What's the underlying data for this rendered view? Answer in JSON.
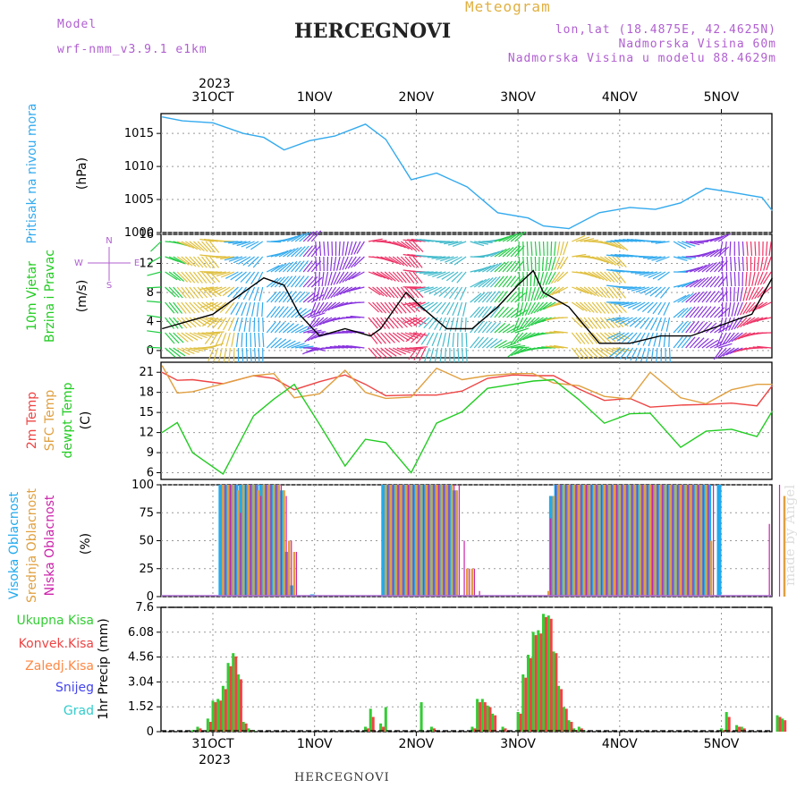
{
  "header": {
    "model_label": "Model",
    "model_name": "wrf-nmm_v3.9.1 e1km",
    "title": "HERCEGNOVI",
    "meteogram_label": "Meteogram",
    "lonlat": "lon,lat (18.4875E, 42.4625N)",
    "altitude": "Nadmorska Visina 60m",
    "model_altitude": "Nadmorska Visina u modelu 88.4629m"
  },
  "footer": {
    "station": "HERCEGNOVI"
  },
  "watermark": "made by Angel",
  "time_axis": {
    "year": "2023",
    "ticks": [
      "31OCT",
      "1NOV",
      "2NOV",
      "3NOV",
      "4NOV",
      "5NOV"
    ]
  },
  "colors": {
    "pressure": "#33aaee",
    "temp2m": "#ee4444",
    "sfc_temp": "#e0a040",
    "dewpt": "#22cc22",
    "high_cloud": "#22aaee",
    "mid_cloud": "#e0a040",
    "low_cloud": "#cc22aa",
    "total_precip": "#33cc33",
    "conv_precip": "#ee4444"
  },
  "chart_data": [
    {
      "type": "line",
      "panel": "pressure",
      "ylabel": "Pritisak na nivou mora",
      "unit": "(hPa)",
      "ylim": [
        1000,
        1018
      ],
      "yticks": [
        1000,
        1005,
        1010,
        1015
      ],
      "x_days": [
        0,
        0.2,
        0.5,
        0.8,
        1.0,
        1.2,
        1.45,
        1.7,
        2.0,
        2.2,
        2.45,
        2.7,
        3.0,
        3.3,
        3.6,
        3.75,
        4.0,
        4.3,
        4.6,
        4.85,
        5.1,
        5.35,
        5.6,
        5.9,
        6.0
      ],
      "series": [
        {
          "values": [
            1017.5,
            1016.9,
            1016.6,
            1015.0,
            1014.4,
            1012.5,
            1013.9,
            1014.6,
            1016.4,
            1014.1,
            1008.0,
            1009.0,
            1006.9,
            1003.0,
            1002.2,
            1001.0,
            1000.6,
            1003.0,
            1003.8,
            1003.5,
            1004.5,
            1006.7,
            1006.1,
            1005.3,
            1003.3
          ]
        }
      ]
    },
    {
      "type": "line",
      "panel": "wind",
      "ylabel": "10m Vjetar Brzina i Pravac",
      "unit": "(m/s)",
      "ylim": [
        -1,
        16
      ],
      "yticks": [
        0,
        4,
        8,
        12,
        16
      ],
      "x_days": [
        0,
        0.5,
        0.8,
        1.0,
        1.2,
        1.35,
        1.55,
        1.8,
        2.05,
        2.15,
        2.4,
        2.55,
        2.8,
        3.05,
        3.3,
        3.5,
        3.65,
        3.75,
        4.0,
        4.3,
        4.6,
        4.9,
        5.2,
        5.4,
        5.6,
        5.8,
        6.0
      ],
      "series": [
        {
          "values": [
            3,
            5,
            8,
            10,
            9,
            5,
            2,
            3,
            2,
            3,
            8,
            6,
            3,
            3,
            6,
            9,
            11,
            8,
            6,
            1,
            1,
            2,
            2,
            3,
            4,
            5,
            10
          ]
        }
      ],
      "compass_labels": [
        "N",
        "S",
        "W",
        "E"
      ]
    },
    {
      "type": "line",
      "panel": "temperature",
      "ylabel": [
        "2m Temp",
        "SFC Temp",
        "dewpt Temp"
      ],
      "unit": "(C)",
      "ylim": [
        5,
        22.5
      ],
      "yticks": [
        6,
        9,
        12,
        15,
        18,
        21
      ],
      "x_days": [
        0,
        0.15,
        0.3,
        0.6,
        0.9,
        1.1,
        1.3,
        1.55,
        1.8,
        2.0,
        2.2,
        2.45,
        2.7,
        2.95,
        3.2,
        3.45,
        3.65,
        3.85,
        4.1,
        4.35,
        4.6,
        4.8,
        5.1,
        5.35,
        5.6,
        5.85,
        6.0
      ],
      "series": [
        {
          "name": "2m Temp",
          "values": [
            21,
            19.8,
            19.9,
            19.3,
            20.5,
            20.1,
            18.4,
            19.6,
            20.6,
            19.2,
            17.5,
            17.6,
            17.6,
            18.2,
            20.1,
            20.6,
            20.5,
            20.5,
            18.5,
            16.8,
            17.1,
            15.8,
            16.1,
            16.2,
            16.4,
            16.0,
            19.0
          ]
        },
        {
          "name": "SFC Temp",
          "values": [
            22,
            17.9,
            18.1,
            19.3,
            20.5,
            20.8,
            17.2,
            17.8,
            21.3,
            18.0,
            17.1,
            17.3,
            21.6,
            19.9,
            20.5,
            20.8,
            20.8,
            19.4,
            19.0,
            17.4,
            17.0,
            21.0,
            17.2,
            16.3,
            18.4,
            19.2,
            19.2
          ]
        },
        {
          "name": "dewpt Temp",
          "values": [
            12,
            13.5,
            9,
            5.8,
            14.5,
            17.0,
            19.2,
            13.2,
            7.0,
            11.0,
            10.5,
            6.0,
            13.4,
            15.1,
            18.6,
            19.2,
            19.7,
            19.9,
            16.9,
            13.4,
            14.8,
            14.9,
            9.8,
            12.2,
            12.5,
            11.4,
            15.2
          ]
        }
      ]
    },
    {
      "type": "bar",
      "panel": "cloud_cover",
      "ylabel": [
        "Visoka Oblacnost",
        "Srednja Oblacnost",
        "Niska Oblacnost"
      ],
      "unit": "(%)",
      "ylim": [
        0,
        100
      ],
      "yticks": [
        0,
        25,
        50,
        75,
        100
      ],
      "x_days": [
        0.55,
        0.6,
        0.65,
        0.7,
        0.75,
        0.8,
        0.85,
        0.9,
        0.95,
        1.0,
        1.05,
        1.1,
        1.15,
        1.2,
        1.25,
        1.3,
        1.35,
        1.5,
        2.15,
        2.2,
        2.25,
        2.3,
        2.35,
        2.4,
        2.45,
        2.5,
        2.55,
        2.6,
        2.65,
        2.7,
        2.75,
        2.8,
        2.85,
        2.9,
        2.95,
        3.0,
        3.05,
        3.1,
        3.15,
        3.3,
        3.8,
        3.85,
        3.9,
        3.95,
        4.0,
        4.05,
        4.1,
        4.15,
        4.2,
        4.25,
        4.3,
        4.35,
        4.4,
        4.45,
        4.5,
        4.55,
        4.6,
        4.65,
        4.7,
        4.75,
        4.8,
        4.85,
        4.9,
        4.95,
        5.0,
        5.05,
        5.1,
        5.15,
        5.2,
        5.25,
        5.3,
        5.35,
        5.4,
        5.5,
        5.95,
        6.0,
        6.05,
        6.12
      ],
      "series": [
        {
          "name": "Visoka Oblacnost",
          "values": [
            0,
            100,
            100,
            100,
            100,
            100,
            100,
            100,
            100,
            100,
            100,
            100,
            100,
            95,
            40,
            10,
            0,
            2,
            0,
            100,
            100,
            100,
            100,
            100,
            100,
            100,
            100,
            100,
            100,
            100,
            100,
            100,
            100,
            95,
            0,
            0,
            0,
            0,
            0,
            0,
            0,
            90,
            100,
            100,
            100,
            100,
            100,
            100,
            100,
            100,
            100,
            100,
            100,
            100,
            100,
            100,
            100,
            100,
            100,
            100,
            100,
            100,
            100,
            100,
            100,
            100,
            100,
            100,
            100,
            100,
            100,
            100,
            100,
            100,
            0,
            0,
            0,
            0
          ]
        },
        {
          "name": "Srednja Oblacnost",
          "values": [
            0,
            100,
            100,
            100,
            95,
            100,
            100,
            100,
            95,
            100,
            100,
            100,
            100,
            95,
            50,
            40,
            0,
            0,
            0,
            100,
            100,
            100,
            100,
            100,
            100,
            100,
            100,
            100,
            100,
            100,
            100,
            100,
            100,
            95,
            0,
            25,
            25,
            0,
            0,
            0,
            5,
            90,
            100,
            100,
            100,
            100,
            100,
            100,
            100,
            100,
            100,
            100,
            100,
            100,
            100,
            100,
            100,
            100,
            100,
            100,
            100,
            100,
            100,
            100,
            100,
            100,
            100,
            100,
            100,
            100,
            100,
            100,
            50,
            0,
            0,
            0,
            0,
            90
          ]
        },
        {
          "name": "Niska Oblacnost",
          "values": [
            0,
            100,
            100,
            100,
            75,
            100,
            100,
            100,
            90,
            100,
            100,
            100,
            100,
            90,
            50,
            40,
            0,
            0,
            0,
            100,
            100,
            100,
            100,
            100,
            100,
            100,
            100,
            100,
            100,
            100,
            100,
            100,
            100,
            100,
            50,
            25,
            25,
            5,
            0,
            0,
            70,
            100,
            100,
            100,
            100,
            100,
            100,
            100,
            100,
            100,
            100,
            100,
            100,
            100,
            100,
            100,
            100,
            100,
            100,
            100,
            100,
            100,
            100,
            100,
            100,
            100,
            100,
            100,
            100,
            100,
            100,
            100,
            100,
            0,
            65,
            0,
            100,
            0
          ]
        }
      ]
    },
    {
      "type": "bar",
      "panel": "precipitation",
      "ylabel": "1hr Precip",
      "unit": "(mm)",
      "ylim": [
        0,
        7.6
      ],
      "yticks": [
        0,
        1.52,
        3.04,
        4.56,
        6.08,
        7.6
      ],
      "legend": [
        "Ukupna Kisa",
        "Konvek.Kisa",
        "Zaledj.Kisa",
        "Snijeg",
        "Grad"
      ],
      "x_days": [
        0.3,
        0.35,
        0.45,
        0.5,
        0.55,
        0.6,
        0.65,
        0.7,
        0.75,
        0.8,
        0.85,
        0.9,
        2.0,
        2.05,
        2.15,
        2.2,
        2.55,
        2.65,
        3.05,
        3.1,
        3.15,
        3.2,
        3.25,
        3.35,
        3.5,
        3.55,
        3.6,
        3.65,
        3.7,
        3.75,
        3.8,
        3.85,
        3.9,
        3.95,
        4.0,
        4.05,
        4.1,
        4.15,
        5.5,
        5.55,
        5.65,
        5.7,
        6.05,
        6.1
      ],
      "series": [
        {
          "name": "Ukupna Kisa",
          "values": [
            0.1,
            0.3,
            0.8,
            1.9,
            2.0,
            2.8,
            4.2,
            4.8,
            3.5,
            0.6,
            0.2,
            0.1,
            0.3,
            1.4,
            0.5,
            1.5,
            1.8,
            0.3,
            0.3,
            2.0,
            2.0,
            1.6,
            1.1,
            0.3,
            1.2,
            3.5,
            4.7,
            6.1,
            6.2,
            7.2,
            7.1,
            4.9,
            2.8,
            1.5,
            0.7,
            0.2,
            0.3,
            0.1,
            0.2,
            1.2,
            0.4,
            0.3,
            1.0,
            0.8
          ]
        },
        {
          "name": "Konvek.Kisa",
          "values": [
            0.0,
            0.2,
            0.6,
            1.8,
            1.9,
            2.6,
            4.0,
            4.6,
            3.2,
            0.5,
            0.1,
            0.0,
            0.2,
            0.9,
            0.3,
            0.0,
            0.0,
            0.2,
            0.2,
            1.8,
            1.8,
            1.5,
            1.0,
            0.2,
            1.1,
            3.3,
            4.5,
            5.9,
            6.0,
            7.0,
            6.9,
            4.8,
            2.6,
            1.4,
            0.6,
            0.1,
            0.2,
            0.0,
            0.1,
            0.9,
            0.3,
            0.2,
            0.9,
            0.7
          ]
        }
      ]
    }
  ]
}
